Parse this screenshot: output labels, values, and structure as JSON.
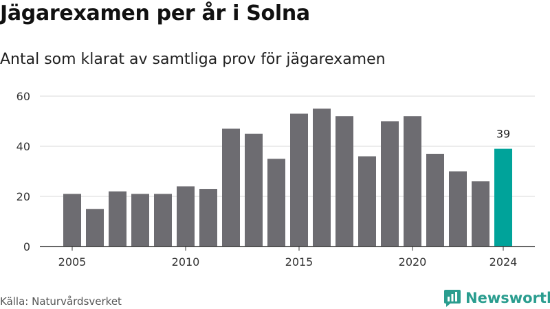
{
  "chart_data": {
    "type": "bar",
    "title": "Jägarexamen per år i Solna",
    "subtitle": "Antal som klarat av samtliga prov för jägarexamen",
    "x": [
      2005,
      2006,
      2007,
      2008,
      2009,
      2010,
      2011,
      2012,
      2013,
      2014,
      2015,
      2016,
      2017,
      2018,
      2019,
      2020,
      2021,
      2022,
      2023,
      2024
    ],
    "values": [
      21,
      15,
      22,
      21,
      21,
      24,
      23,
      47,
      45,
      35,
      53,
      55,
      52,
      36,
      50,
      52,
      37,
      30,
      26,
      39
    ],
    "xticks": [
      "2005",
      "2010",
      "2015",
      "2020",
      "2024"
    ],
    "yticks": [
      "0",
      "20",
      "40",
      "60"
    ],
    "ylim": [
      0,
      60
    ],
    "grid": true,
    "highlight": {
      "x": 2024,
      "label": "39"
    },
    "colors": {
      "bar": "#6d6c71",
      "highlight": "#00a39a",
      "grid": "#d9d9d9",
      "axis": "#333333"
    }
  },
  "source": "Källa: Naturvårdsverket",
  "brand": {
    "name": "Newsworthy",
    "icon": "bar-chart-bubble-icon",
    "color": "#2a9d8f"
  }
}
